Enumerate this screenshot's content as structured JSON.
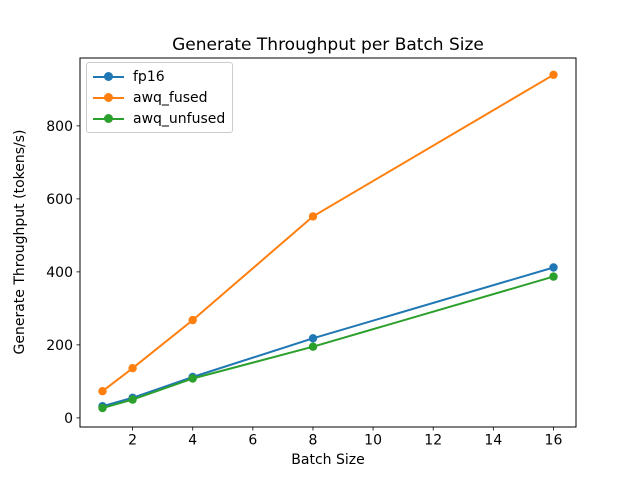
{
  "chart_data": {
    "type": "line",
    "title": "Generate Throughput per Batch Size",
    "xlabel": "Batch Size",
    "ylabel": "Generate Throughput (tokens/s)",
    "x": [
      1,
      2,
      4,
      8,
      16
    ],
    "series": [
      {
        "name": "fp16",
        "color": "#1f77b4",
        "values": [
          32,
          55,
          112,
          218,
          412
        ]
      },
      {
        "name": "awq_fused",
        "color": "#ff7f0e",
        "values": [
          73,
          136,
          268,
          552,
          940
        ]
      },
      {
        "name": "awq_unfused",
        "color": "#2ca02c",
        "values": [
          27,
          50,
          108,
          195,
          387
        ]
      }
    ],
    "xlim": [
      0.25,
      16.75
    ],
    "ylim": [
      -25,
      986
    ],
    "x_ticks": [
      2,
      4,
      6,
      8,
      10,
      12,
      14,
      16
    ],
    "y_ticks": [
      0,
      200,
      400,
      600,
      800
    ],
    "legend_position": "upper left",
    "grid": false,
    "marker": "circle"
  },
  "colors": {
    "background": "#ffffff",
    "axes": "#000000",
    "legend_border": "#cccccc"
  }
}
